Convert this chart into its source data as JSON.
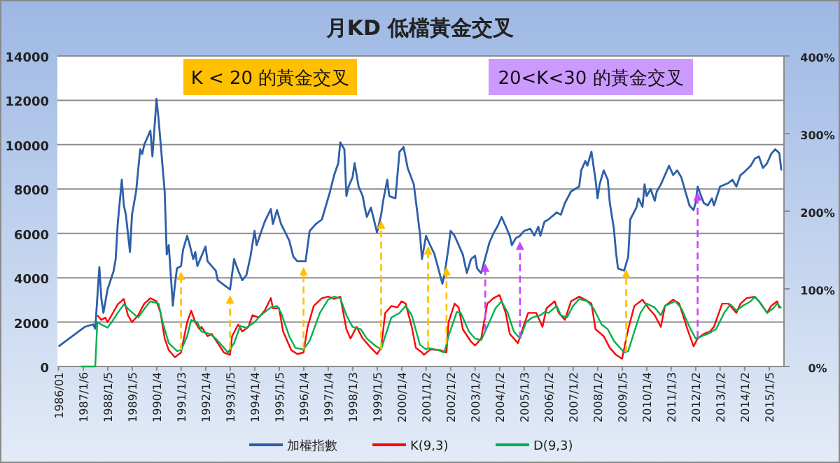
{
  "chart_data": {
    "type": "line",
    "title": "月KD 低檔黃金交叉",
    "annotations": [
      "K < 20 的黃金交叉",
      "20<K<30 的黃金交叉"
    ],
    "xlim": [
      "1985-12-15",
      "2015-08-10"
    ],
    "xticks": [
      {
        "value": "1986-01",
        "label": "1986/01"
      },
      {
        "value": "1987-01-06",
        "label": "1987/1/6"
      },
      {
        "value": "1988-01-05",
        "label": "1988/1/5"
      },
      {
        "value": "1989-01-05",
        "label": "1989/1/5"
      },
      {
        "value": "1990-01-04",
        "label": "1990/1/4"
      },
      {
        "value": "1991-01-03",
        "label": "1991/1/3"
      },
      {
        "value": "1992-01-04",
        "label": "1992/1/4"
      },
      {
        "value": "1993-01-05",
        "label": "1993/1/5"
      },
      {
        "value": "1994-01-04",
        "label": "1994/1/4"
      },
      {
        "value": "1995-01-05",
        "label": "1995/1/5"
      },
      {
        "value": "1996-01-04",
        "label": "1996/1/4"
      },
      {
        "value": "1997-01-04",
        "label": "1997/1/4"
      },
      {
        "value": "1998-01-03",
        "label": "1998/1/3"
      },
      {
        "value": "1999-01-05",
        "label": "1999/1/5"
      },
      {
        "value": "2000-01-04",
        "label": "2000/1/4"
      },
      {
        "value": "2001-01-02",
        "label": "2001/1/2"
      },
      {
        "value": "2002-01-02",
        "label": "2002/1/2"
      },
      {
        "value": "2003-01-02",
        "label": "2003/1/2"
      },
      {
        "value": "2004-01-02",
        "label": "2004/1/2"
      },
      {
        "value": "2005-01-03",
        "label": "2005/1/3"
      },
      {
        "value": "2006-01-02",
        "label": "2006/1/2"
      },
      {
        "value": "2007-01-02",
        "label": "2007/1/2"
      },
      {
        "value": "2008-01-02",
        "label": "2008/1/2"
      },
      {
        "value": "2009-01-05",
        "label": "2009/1/5"
      },
      {
        "value": "2010-01-04",
        "label": "2010/1/4"
      },
      {
        "value": "2011-01-03",
        "label": "2011/1/3"
      },
      {
        "value": "2012-01-02",
        "label": "2012/1/2"
      },
      {
        "value": "2013-01-02",
        "label": "2013/1/2"
      },
      {
        "value": "2014-01-02",
        "label": "2014/1/2"
      },
      {
        "value": "2015-01-05",
        "label": "2015/1/5"
      }
    ],
    "ylim": [
      0,
      14000
    ],
    "yticks": [
      0,
      2000,
      4000,
      6000,
      8000,
      10000,
      12000,
      14000
    ],
    "y2lim": [
      0,
      400
    ],
    "y2ticks": [
      {
        "value": 0,
        "label": "0%"
      },
      {
        "value": 100,
        "label": "100%"
      },
      {
        "value": 200,
        "label": "200%"
      },
      {
        "value": 300,
        "label": "300%"
      },
      {
        "value": 400,
        "label": "400%"
      }
    ],
    "grid": "y",
    "legend": "bottom",
    "ref_lines": [
      {
        "axis": "x",
        "value": "1991-01",
        "color": "#ffc000",
        "line_style": "dashed"
      },
      {
        "axis": "x",
        "value": "1993-01",
        "color": "#ffc000",
        "line_style": "dashed"
      },
      {
        "axis": "x",
        "value": "1996-01",
        "color": "#ffc000",
        "line_style": "dashed"
      },
      {
        "axis": "x",
        "value": "1999-03",
        "color": "#ffc000",
        "line_style": "dashed"
      },
      {
        "axis": "x",
        "value": "2001-02",
        "color": "#ffc000",
        "line_style": "dashed"
      },
      {
        "axis": "x",
        "value": "2001-11",
        "color": "#ffc000",
        "line_style": "dashed"
      },
      {
        "axis": "x",
        "value": "2009-03",
        "color": "#ffc000",
        "line_style": "dashed"
      },
      {
        "axis": "x",
        "value": "2003-06",
        "color": "#cc44ff",
        "line_style": "dashed"
      },
      {
        "axis": "x",
        "value": "2004-11",
        "color": "#cc44ff",
        "line_style": "dashed"
      },
      {
        "axis": "x",
        "value": "2012-02",
        "color": "#cc44ff",
        "line_style": "dashed"
      }
    ],
    "series": [
      {
        "name": "加權指數",
        "color": "#2e5fa8",
        "x": [
          "1986-01",
          "1987-02",
          "1987-06",
          "1987-07",
          "1987-09",
          "1987-10",
          "1987-11",
          "1988-01",
          "1988-04",
          "1988-05",
          "1988-06",
          "1988-08",
          "1988-09",
          "1988-10",
          "1988-12",
          "1989-01",
          "1989-03",
          "1989-05",
          "1989-06",
          "1989-07",
          "1989-10",
          "1989-11",
          "1990-01",
          "1990-02",
          "1990-05",
          "1990-06",
          "1990-07",
          "1990-09",
          "1990-10",
          "1990-11",
          "1991-01",
          "1991-02",
          "1991-04",
          "1991-05",
          "1991-07",
          "1991-08",
          "1991-09",
          "1992-01",
          "1992-02",
          "1992-06",
          "1992-07",
          "1992-10",
          "1993-01",
          "1993-03",
          "1993-05",
          "1993-07",
          "1993-09",
          "1993-11",
          "1994-01",
          "1994-02",
          "1994-04",
          "1994-06",
          "1994-09",
          "1994-10",
          "1994-12",
          "1995-02",
          "1995-06",
          "1995-08",
          "1995-10",
          "1996-02",
          "1996-04",
          "1996-07",
          "1996-10",
          "1996-12",
          "1997-02",
          "1997-04",
          "1997-06",
          "1997-07",
          "1997-09",
          "1997-10",
          "1997-11",
          "1998-01",
          "1998-02",
          "1998-04",
          "1998-06",
          "1998-07",
          "1998-08",
          "1998-10",
          "1999-01",
          "1999-03",
          "1999-04",
          "1999-06",
          "1999-07",
          "1999-10",
          "1999-12",
          "2000-02",
          "2000-04",
          "2000-07",
          "2000-08",
          "2000-10",
          "2000-11",
          "2001-01",
          "2001-03",
          "2001-05",
          "2001-07",
          "2001-09",
          "2001-10",
          "2001-12",
          "2002-01",
          "2002-03",
          "2002-07",
          "2002-09",
          "2002-11",
          "2003-01",
          "2003-02",
          "2003-04",
          "2003-08",
          "2003-10",
          "2003-12",
          "2004-02",
          "2004-04",
          "2004-06",
          "2004-07",
          "2004-09",
          "2004-11",
          "2005-01",
          "2005-04",
          "2005-06",
          "2005-08",
          "2005-09",
          "2005-11",
          "2006-01",
          "2006-05",
          "2006-07",
          "2006-09",
          "2006-12",
          "2007-04",
          "2007-05",
          "2007-07",
          "2007-08",
          "2007-10",
          "2007-11",
          "2007-12",
          "2008-01",
          "2008-02",
          "2008-04",
          "2008-06",
          "2008-07",
          "2008-09",
          "2008-10",
          "2008-11",
          "2009-02",
          "2009-04",
          "2009-05",
          "2009-08",
          "2009-09",
          "2009-11",
          "2009-12",
          "2010-01",
          "2010-03",
          "2010-05",
          "2010-06",
          "2010-08",
          "2010-12",
          "2011-02",
          "2011-04",
          "2011-06",
          "2011-08",
          "2011-10",
          "2011-12",
          "2012-01",
          "2012-02",
          "2012-05",
          "2012-07",
          "2012-09",
          "2012-10",
          "2013-01",
          "2013-05",
          "2013-07",
          "2013-09",
          "2013-11",
          "2014-01",
          "2014-04",
          "2014-06",
          "2014-08",
          "2014-10",
          "2014-12",
          "2015-02",
          "2015-04",
          "2015-06",
          "2015-07"
        ],
        "values": [
          900,
          1790,
          1900,
          1700,
          4480,
          3050,
          2420,
          3470,
          4310,
          4840,
          6420,
          8420,
          7260,
          6840,
          5160,
          6840,
          7890,
          9790,
          9580,
          10000,
          10630,
          9470,
          12060,
          11160,
          7890,
          5050,
          5470,
          2740,
          3680,
          4420,
          4530,
          5260,
          5890,
          5580,
          4840,
          5160,
          4530,
          5410,
          4740,
          4320,
          3890,
          3680,
          3470,
          4840,
          4320,
          3890,
          4110,
          4950,
          6110,
          5470,
          6000,
          6530,
          7100,
          6420,
          7050,
          6420,
          5680,
          4950,
          4740,
          4740,
          6110,
          6420,
          6630,
          7260,
          7890,
          8630,
          9160,
          10100,
          9790,
          7680,
          8100,
          8530,
          9160,
          8100,
          7680,
          7160,
          6740,
          7160,
          6040,
          6840,
          7470,
          8420,
          7680,
          7580,
          9680,
          9890,
          8950,
          8210,
          7470,
          6000,
          4840,
          5890,
          5470,
          5100,
          4420,
          3730,
          4110,
          5370,
          6110,
          5890,
          5050,
          4210,
          4840,
          4990,
          4420,
          4210,
          5580,
          6000,
          6320,
          6740,
          6320,
          5890,
          5470,
          5790,
          5890,
          6110,
          6210,
          5900,
          6300,
          5890,
          6530,
          6630,
          6950,
          6840,
          7370,
          7890,
          8110,
          8840,
          9260,
          9050,
          9680,
          9050,
          8420,
          7580,
          8210,
          8840,
          8420,
          7370,
          6210,
          5160,
          4420,
          4320,
          4950,
          6630,
          7160,
          7580,
          7200,
          8210,
          7680,
          8000,
          7470,
          7890,
          8210,
          9050,
          8630,
          8840,
          8530,
          7890,
          7260,
          7050,
          7370,
          8110,
          7370,
          7260,
          7580,
          7260,
          8110,
          8270,
          8420,
          8110,
          8630,
          8780,
          9050,
          9370,
          9470,
          8950,
          9160,
          9580,
          9790,
          9620,
          8840
        ]
      },
      {
        "name": "K(9,3)",
        "color": "#ff0000",
        "axis": "y2",
        "x": [
          "1987-08",
          "1987-10",
          "1987-12",
          "1988-01",
          "1988-03",
          "1988-06",
          "1988-09",
          "1988-11",
          "1989-01",
          "1989-04",
          "1989-07",
          "1989-10",
          "1990-01",
          "1990-03",
          "1990-05",
          "1990-07",
          "1990-10",
          "1991-01",
          "1991-04",
          "1991-06",
          "1991-08",
          "1991-10",
          "1991-11",
          "1992-02",
          "1992-04",
          "1992-07",
          "1992-10",
          "1993-01",
          "1993-02",
          "1993-05",
          "1993-07",
          "1993-10",
          "1993-12",
          "1994-03",
          "1994-06",
          "1994-09",
          "1994-10",
          "1995-01",
          "1995-03",
          "1995-07",
          "1995-10",
          "1996-01",
          "1996-03",
          "1996-06",
          "1996-10",
          "1997-01",
          "1997-04",
          "1997-07",
          "1997-10",
          "1997-12",
          "1998-03",
          "1998-06",
          "1998-10",
          "1999-01",
          "1999-03",
          "1999-05",
          "1999-08",
          "1999-11",
          "2000-01",
          "2000-03",
          "2000-06",
          "2000-08",
          "2000-11",
          "2000-12",
          "2001-03",
          "2001-08",
          "2001-11",
          "2001-12",
          "2002-03",
          "2002-05",
          "2002-07",
          "2002-11",
          "2003-01",
          "2003-04",
          "2003-07",
          "2003-10",
          "2004-01",
          "2004-04",
          "2004-06",
          "2004-10",
          "2005-01",
          "2005-03",
          "2005-07",
          "2005-10",
          "2005-12",
          "2006-04",
          "2006-06",
          "2006-09",
          "2006-12",
          "2007-04",
          "2007-07",
          "2007-10",
          "2007-12",
          "2008-04",
          "2008-07",
          "2008-10",
          "2009-01",
          "2009-04",
          "2009-07",
          "2009-11",
          "2010-02",
          "2010-05",
          "2010-08",
          "2010-10",
          "2011-02",
          "2011-05",
          "2011-09",
          "2011-12",
          "2012-02",
          "2012-05",
          "2012-08",
          "2012-10",
          "2013-02",
          "2013-05",
          "2013-09",
          "2013-11",
          "2014-02",
          "2014-06",
          "2014-09",
          "2014-12",
          "2015-02",
          "2015-05",
          "2015-06"
        ],
        "values": [
          66,
          60,
          63,
          57,
          66,
          80,
          87,
          66,
          57,
          66,
          81,
          88,
          84,
          69,
          36,
          21,
          12,
          18,
          57,
          72,
          57,
          48,
          51,
          39,
          42,
          30,
          18,
          15,
          39,
          54,
          45,
          51,
          66,
          63,
          72,
          88,
          75,
          75,
          45,
          21,
          16,
          18,
          51,
          78,
          88,
          90,
          87,
          90,
          48,
          36,
          51,
          36,
          24,
          16,
          24,
          69,
          78,
          76,
          84,
          81,
          51,
          24,
          18,
          15,
          22,
          21,
          18,
          57,
          81,
          76,
          48,
          32,
          27,
          36,
          81,
          88,
          92,
          69,
          42,
          30,
          54,
          69,
          69,
          51,
          75,
          84,
          69,
          60,
          84,
          90,
          86,
          81,
          48,
          39,
          24,
          15,
          10,
          48,
          78,
          86,
          75,
          66,
          51,
          78,
          86,
          81,
          48,
          26,
          36,
          42,
          45,
          51,
          81,
          81,
          69,
          81,
          88,
          90,
          81,
          69,
          78,
          84,
          75
        ]
      },
      {
        "name": "D(9,3)",
        "color": "#00b050",
        "axis": "y2",
        "x": [
          "1986-12",
          "1987-07",
          "1987-08",
          "1987-10",
          "1988-01",
          "1988-03",
          "1988-06",
          "1988-09",
          "1988-12",
          "1989-04",
          "1989-07",
          "1989-10",
          "1990-02",
          "1990-04",
          "1990-07",
          "1990-11",
          "1991-01",
          "1991-04",
          "1991-06",
          "1991-09",
          "1991-11",
          "1992-03",
          "1992-06",
          "1992-10",
          "1992-12",
          "1993-03",
          "1993-06",
          "1993-09",
          "1994-01",
          "1994-04",
          "1994-09",
          "1994-12",
          "1995-02",
          "1995-06",
          "1995-09",
          "1996-01",
          "1996-04",
          "1996-09",
          "1997-01",
          "1997-04",
          "1997-07",
          "1997-10",
          "1998-01",
          "1998-05",
          "1998-08",
          "1998-12",
          "1999-03",
          "1999-05",
          "1999-08",
          "1999-12",
          "2000-03",
          "2000-06",
          "2000-10",
          "2001-01",
          "2001-02",
          "2001-07",
          "2001-10",
          "2001-12",
          "2002-04",
          "2002-06",
          "2002-10",
          "2003-01",
          "2003-04",
          "2003-08",
          "2003-11",
          "2004-02",
          "2004-05",
          "2004-08",
          "2004-11",
          "2005-02",
          "2005-05",
          "2005-09",
          "2005-11",
          "2006-01",
          "2006-05",
          "2006-07",
          "2006-10",
          "2007-01",
          "2007-04",
          "2007-08",
          "2007-11",
          "2008-03",
          "2008-06",
          "2008-09",
          "2009-02",
          "2009-04",
          "2009-07",
          "2009-10",
          "2010-01",
          "2010-05",
          "2010-08",
          "2010-10",
          "2011-03",
          "2011-06",
          "2011-10",
          "2012-01",
          "2012-04",
          "2012-07",
          "2012-11",
          "2013-03",
          "2013-06",
          "2013-09",
          "2013-12",
          "2014-04",
          "2014-06",
          "2014-08",
          "2014-12",
          "2015-03",
          "2015-05",
          "2015-07"
        ],
        "values": [
          0,
          0,
          57,
          54,
          50,
          57,
          69,
          80,
          72,
          63,
          74,
          84,
          81,
          57,
          30,
          20,
          21,
          39,
          60,
          57,
          45,
          42,
          36,
          24,
          18,
          30,
          52,
          50,
          57,
          66,
          76,
          78,
          69,
          39,
          24,
          22,
          33,
          69,
          86,
          90,
          88,
          66,
          51,
          48,
          36,
          27,
          22,
          39,
          63,
          69,
          78,
          66,
          28,
          22,
          24,
          21,
          18,
          39,
          70,
          69,
          45,
          36,
          34,
          57,
          75,
          84,
          69,
          45,
          36,
          57,
          63,
          66,
          70,
          69,
          78,
          66,
          63,
          78,
          87,
          84,
          75,
          54,
          48,
          33,
          18,
          20,
          45,
          69,
          81,
          76,
          66,
          78,
          84,
          75,
          51,
          36,
          39,
          42,
          48,
          69,
          80,
          72,
          78,
          84,
          90,
          84,
          69,
          75,
          81,
          75
        ]
      }
    ]
  }
}
